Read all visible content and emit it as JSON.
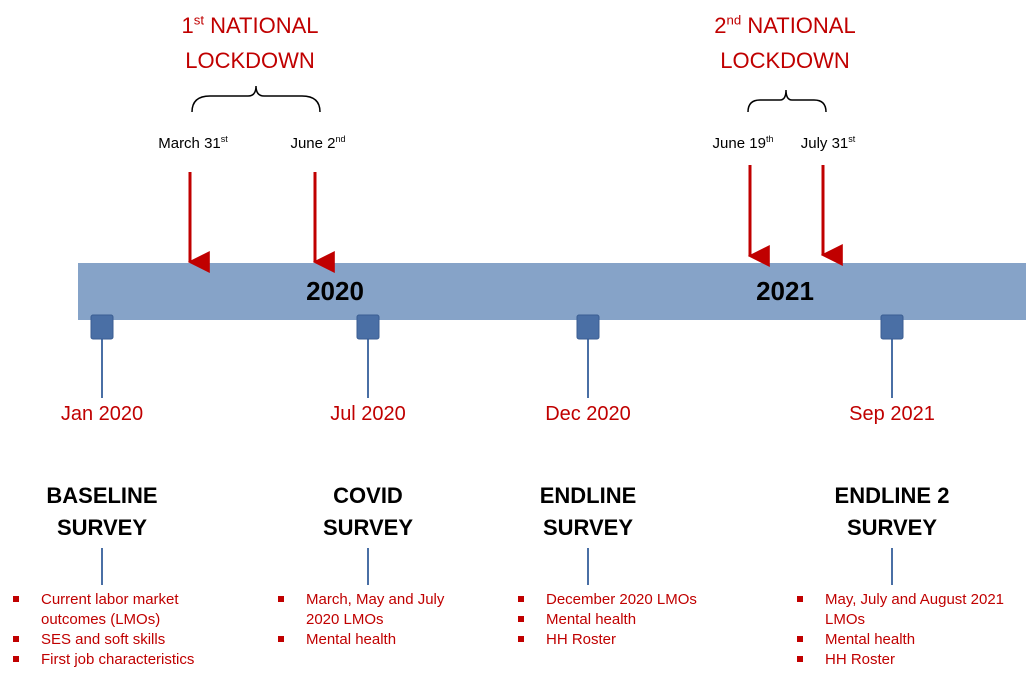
{
  "lockdowns": [
    {
      "ordinal": "1",
      "suffix": "st",
      "line1": "NATIONAL",
      "line2": "LOCKDOWN",
      "start": {
        "text": "March 31",
        "sup": "st"
      },
      "end": {
        "text": "June 2",
        "sup": "nd"
      }
    },
    {
      "ordinal": "2",
      "suffix": "nd",
      "line1": "NATIONAL",
      "line2": "LOCKDOWN",
      "start": {
        "text": "June 19",
        "sup": "th"
      },
      "end": {
        "text": "July 31",
        "sup": "st"
      }
    }
  ],
  "years": [
    "2020",
    "2021"
  ],
  "surveys": [
    {
      "date": "Jan 2020",
      "title": [
        "BASELINE",
        "SURVEY"
      ],
      "items": [
        "Current labor market outcomes (LMOs)",
        "SES and soft skills",
        "First job characteristics"
      ]
    },
    {
      "date": "Jul 2020",
      "title": [
        "COVID",
        "SURVEY"
      ],
      "items": [
        "March, May and July 2020 LMOs",
        "Mental health"
      ]
    },
    {
      "date": "Dec 2020",
      "title": [
        "ENDLINE",
        "SURVEY"
      ],
      "items": [
        "December 2020 LMOs",
        "Mental health",
        "HH Roster"
      ]
    },
    {
      "date": "Sep 2021",
      "title": [
        "ENDLINE 2",
        "SURVEY"
      ],
      "items": [
        "May, July and August 2021 LMOs",
        "Mental health",
        "HH Roster"
      ]
    }
  ]
}
